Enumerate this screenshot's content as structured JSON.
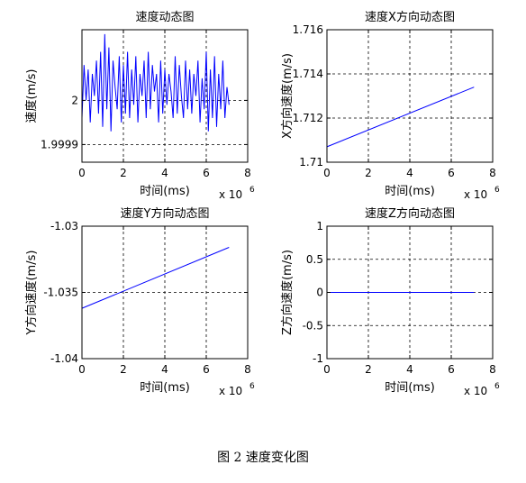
{
  "figure_caption": "图 2  速度变化图",
  "colors": {
    "line": "#0000ff",
    "axes": "#000000",
    "grid": "#000000",
    "background": "#ffffff"
  },
  "chart_data": [
    {
      "type": "line",
      "title": "速度动态图",
      "xlabel": "时间(ms)",
      "ylabel": "速度(m/s)",
      "x_exponent": "x 10",
      "x_exponent_power": "6",
      "xlim": [
        0,
        8
      ],
      "ylim": [
        1.99986,
        2.00016
      ],
      "xticks": [
        0,
        2,
        4,
        6,
        8
      ],
      "xtick_labels": [
        "0",
        "2",
        "4",
        "6",
        "8"
      ],
      "yticks": [
        1.9999,
        2
      ],
      "ytick_labels": [
        "1.9999",
        "2"
      ],
      "grid": true,
      "series": [
        {
          "x": [
            0,
            0.1,
            0.2,
            0.3,
            0.4,
            0.5,
            0.6,
            0.7,
            0.8,
            0.9,
            1.0,
            1.1,
            1.2,
            1.3,
            1.4,
            1.5,
            1.6,
            1.7,
            1.8,
            1.9,
            2.0,
            2.1,
            2.2,
            2.3,
            2.4,
            2.5,
            2.6,
            2.7,
            2.8,
            2.9,
            3.0,
            3.1,
            3.2,
            3.3,
            3.4,
            3.5,
            3.6,
            3.7,
            3.8,
            3.9,
            4.0,
            4.1,
            4.2,
            4.3,
            4.4,
            4.5,
            4.6,
            4.7,
            4.8,
            4.9,
            5.0,
            5.1,
            5.2,
            5.3,
            5.4,
            5.5,
            5.6,
            5.7,
            5.8,
            5.9,
            6.0,
            6.1,
            6.2,
            6.3,
            6.4,
            6.5,
            6.6,
            6.7,
            6.8,
            6.9,
            7.0,
            7.1
          ],
          "y": [
            1.99996,
            2.00008,
            2.0,
            2.00007,
            1.99995,
            2.00006,
            2.00001,
            2.00009,
            1.99997,
            2.00011,
            1.99994,
            2.00015,
            1.99998,
            2.00012,
            1.99993,
            2.00009,
            2.00003,
            1.99998,
            2.0001,
            1.99995,
            2.00008,
            1.99997,
            2.00011,
            1.99996,
            2.00007,
            1.99999,
            2.0001,
            1.99995,
            2.00006,
            2.00001,
            2.00009,
            1.99996,
            2.00011,
            1.99998,
            2.00008,
            2.00002,
            2.00006,
            1.99995,
            2.00009,
            1.99997,
            2.00007,
            1.99999,
            2.00006,
            2.00002,
            1.99996,
            2.0001,
            1.99997,
            2.00008,
            2.00001,
            1.99996,
            2.00009,
            1.99998,
            2.00007,
            1.99997,
            2.00006,
            2.00001,
            2.00009,
            1.99995,
            2.00005,
            1.99998,
            2.00011,
            1.99993,
            2.00007,
            1.99996,
            2.0001,
            1.99994,
            2.00006,
            1.99998,
            2.00009,
            1.99996,
            2.00003,
            1.99999
          ]
        }
      ]
    },
    {
      "type": "line",
      "title": "速度X方向动态图",
      "xlabel": "时间(ms)",
      "ylabel": "X方向速度(m/s)",
      "x_exponent": "x 10",
      "x_exponent_power": "6",
      "xlim": [
        0,
        8
      ],
      "ylim": [
        1.71,
        1.716
      ],
      "xticks": [
        0,
        2,
        4,
        6,
        8
      ],
      "xtick_labels": [
        "0",
        "2",
        "4",
        "6",
        "8"
      ],
      "yticks": [
        1.71,
        1.712,
        1.714,
        1.716
      ],
      "ytick_labels": [
        "1.71",
        "1.712",
        "1.714",
        "1.716"
      ],
      "grid": true,
      "series": [
        {
          "x": [
            0,
            7.1
          ],
          "y": [
            1.7107,
            1.7134
          ]
        }
      ]
    },
    {
      "type": "line",
      "title": "速度Y方向动态图",
      "xlabel": "时间(ms)",
      "ylabel": "Y方向速度(m/s)",
      "x_exponent": "x 10",
      "x_exponent_power": "6",
      "xlim": [
        0,
        8
      ],
      "ylim": [
        -1.04,
        -1.03
      ],
      "xticks": [
        0,
        2,
        4,
        6,
        8
      ],
      "xtick_labels": [
        "0",
        "2",
        "4",
        "6",
        "8"
      ],
      "yticks": [
        -1.04,
        -1.035,
        -1.03
      ],
      "ytick_labels": [
        "-1.04",
        "-1.035",
        "-1.03"
      ],
      "grid": true,
      "series": [
        {
          "x": [
            0,
            7.1
          ],
          "y": [
            -1.0362,
            -1.0316
          ]
        }
      ]
    },
    {
      "type": "line",
      "title": "速度Z方向动态图",
      "xlabel": "时间(ms)",
      "ylabel": "Z方向速度(m/s)",
      "x_exponent": "x 10",
      "x_exponent_power": "6",
      "xlim": [
        0,
        8
      ],
      "ylim": [
        -1,
        1
      ],
      "xticks": [
        0,
        2,
        4,
        6,
        8
      ],
      "xtick_labels": [
        "0",
        "2",
        "4",
        "6",
        "8"
      ],
      "yticks": [
        -1,
        -0.5,
        0,
        0.5,
        1
      ],
      "ytick_labels": [
        "-1",
        "-0.5",
        "0",
        "0.5",
        "1"
      ],
      "grid": true,
      "series": [
        {
          "x": [
            0,
            7.1
          ],
          "y": [
            0,
            0
          ]
        }
      ]
    }
  ]
}
